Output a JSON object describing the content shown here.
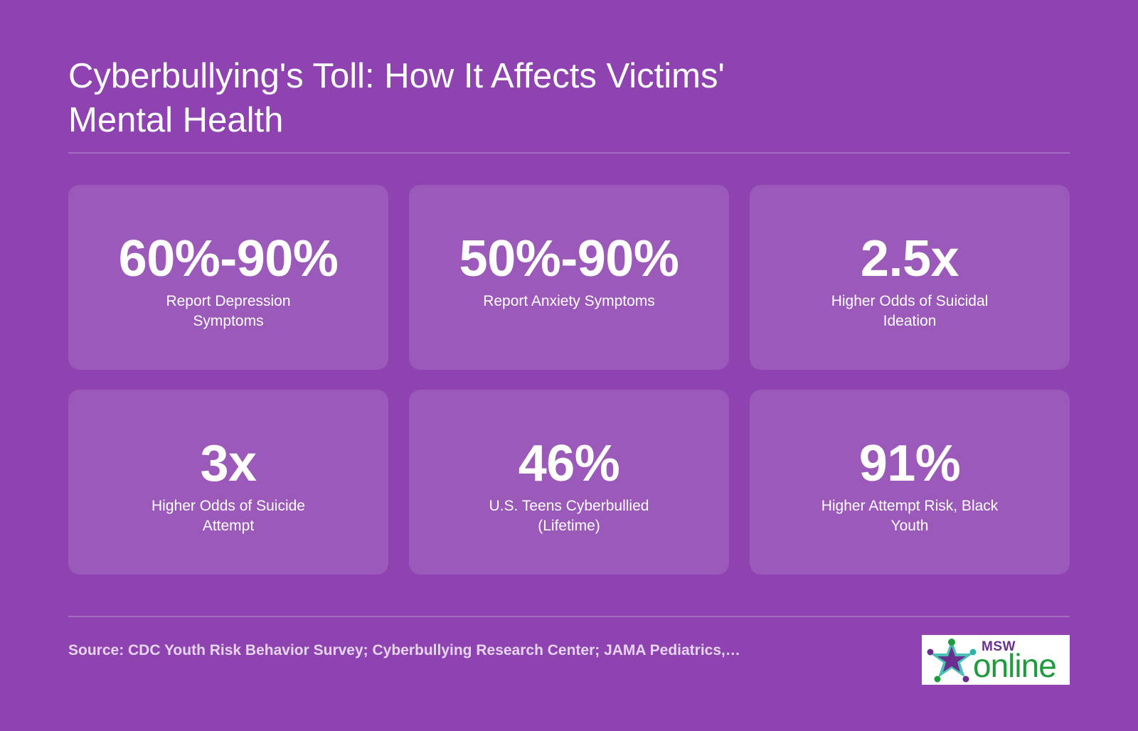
{
  "title": "Cyberbullying's Toll: How It Affects Victims' Mental Health",
  "stats": [
    {
      "value": "60%-90%",
      "label": "Report Depression Symptoms"
    },
    {
      "value": "50%-90%",
      "label": "Report Anxiety Symptoms"
    },
    {
      "value": "2.5x",
      "label": "Higher Odds of Suicidal Ideation"
    },
    {
      "value": "3x",
      "label": "Higher Odds of Suicide Attempt"
    },
    {
      "value": "46%",
      "label": "U.S. Teens Cyberbullied (Lifetime)"
    },
    {
      "value": "91%",
      "label": "Higher Attempt Risk, Black Youth"
    }
  ],
  "source": "Source: CDC Youth Risk Behavior Survey; Cyberbullying Research Center; JAMA Pediatrics,…",
  "logo": {
    "msw": "MSW",
    "online": "online",
    "icon": "star-people-logo-icon"
  },
  "colors": {
    "background": "#8e43b1",
    "card": "rgba(255,255,255,0.12)",
    "logo_purple": "#6a2e8f",
    "logo_green": "#1f9a3c",
    "logo_teal": "#2bb5a8"
  }
}
